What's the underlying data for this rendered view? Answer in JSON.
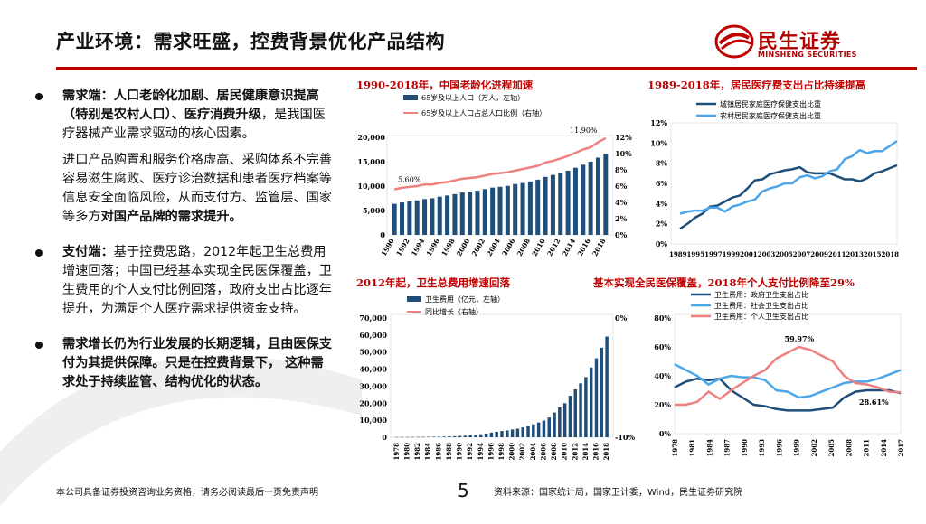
{
  "header": {
    "title": "产业环境：需求旺盛，控费背景优化产品结构",
    "logo_cn": "民生证券",
    "logo_en": "MINSHENG SECURITIES"
  },
  "left": {
    "b1_bold": "需求端：人口老龄化加剧、居民健康意识提高（特别是农村人口）、医疗消费升级",
    "b1_rest": "，是我国医疗器械产业需求驱动的核心因素。",
    "p1_rest": "进口产品购置和服务价格虚高、采购体系不完善容易滋生腐败、医疗诊治数据和患者医疗档案等信息安全面临风险，从而支付方、监管层、国家等多方",
    "p1_bold": "对国产品牌的需求提升。",
    "b2_bold": "支付端：",
    "b2_rest": "基于控费思路，2012年起卫生总费用增速回落；中国已经基本实现全民医保覆盖，卫生费用的个人支付比例回落，政府支出占比逐年提升，为满足个人医疗需求提供资金支持。",
    "b3_bold": "需求增长仍为行业发展的长期逻辑，且由医保支付为其提供保障。只是在控费背景下， 这种需求处于持续监管、结构优化的状态。"
  },
  "footer": {
    "disclaimer": "本公司具备证券投资咨询业务资格，请务必阅读最后一页免责声明",
    "page": "5",
    "source": "资料来源：国家统计局，国家卫计委，Wind，民生证券研究院"
  },
  "colors": {
    "accent": "#c00000",
    "navy": "#1f4e79",
    "pink": "#f08080",
    "sky": "#4da6e8"
  },
  "chart_data": [
    {
      "type": "bar",
      "title": "1990-2018年，中国老龄化进程加速",
      "legend": [
        "65岁及以上人口（万人，左轴）",
        "65岁及以上人口占总人口比例（右轴）"
      ],
      "x": [
        1990,
        1991,
        1992,
        1993,
        1994,
        1995,
        1996,
        1997,
        1998,
        1999,
        2000,
        2001,
        2002,
        2003,
        2004,
        2005,
        2006,
        2007,
        2008,
        2009,
        2010,
        2011,
        2012,
        2013,
        2014,
        2015,
        2016,
        2017,
        2018
      ],
      "x_ticks": [
        "1990",
        "1992",
        "1994",
        "1996",
        "1998",
        "2000",
        "2002",
        "2004",
        "2006",
        "2008",
        "2010",
        "2012",
        "2014",
        "2016",
        "2018"
      ],
      "bars_left": [
        6368,
        6651,
        6843,
        7070,
        7350,
        7510,
        7833,
        8085,
        8359,
        8679,
        8821,
        9062,
        9377,
        9692,
        9857,
        10055,
        10419,
        10636,
        10956,
        11307,
        11894,
        12288,
        12714,
        13161,
        13755,
        14386,
        15003,
        15831,
        16658
      ],
      "line_right": [
        5.6,
        5.8,
        5.9,
        6.0,
        6.2,
        6.2,
        6.4,
        6.5,
        6.7,
        6.9,
        7.0,
        7.1,
        7.3,
        7.5,
        7.6,
        7.7,
        7.9,
        8.1,
        8.3,
        8.5,
        8.9,
        9.1,
        9.4,
        9.7,
        10.1,
        10.5,
        10.8,
        11.4,
        11.9
      ],
      "ylim_left": [
        0,
        20000
      ],
      "yticks_left": [
        "0",
        "5,000",
        "10,000",
        "15,000",
        "20,000"
      ],
      "ylim_right": [
        0,
        12
      ],
      "yticks_right": [
        "0%",
        "2%",
        "4%",
        "6%",
        "8%",
        "10%",
        "12%"
      ],
      "annotations": [
        "5.60%",
        "11.90%"
      ]
    },
    {
      "type": "line",
      "title": "1989-2018年，居民医疗费支出占比持续提高",
      "legend": [
        "城镇居民家庭医疗保健支出比重",
        "农村居民家庭医疗保健支出比重"
      ],
      "x": [
        1989,
        1990,
        1991,
        1992,
        1993,
        1994,
        1995,
        1996,
        1997,
        1998,
        1999,
        2000,
        2001,
        2002,
        2003,
        2004,
        2005,
        2006,
        2007,
        2008,
        2009,
        2010,
        2011,
        2012,
        2013,
        2014,
        2015,
        2016,
        2017,
        2018
      ],
      "x_ticks_text": "1989199519971999200120032005200720092011201320152018",
      "series": [
        {
          "name": "城镇居民家庭医疗保健支出比重",
          "values": [
            1.5,
            2.0,
            2.6,
            3.0,
            3.7,
            3.8,
            4.2,
            4.6,
            4.8,
            5.5,
            6.3,
            6.4,
            6.9,
            7.1,
            7.3,
            7.4,
            7.6,
            7.1,
            7.0,
            7.0,
            7.0,
            6.7,
            6.4,
            6.4,
            6.2,
            6.5,
            7.0,
            7.2,
            7.5,
            7.8
          ]
        },
        {
          "name": "农村居民家庭医疗保健支出比重",
          "values": [
            3.0,
            3.2,
            3.3,
            3.3,
            3.6,
            3.6,
            3.2,
            3.7,
            3.9,
            4.2,
            4.4,
            5.2,
            5.5,
            5.7,
            6.0,
            6.0,
            6.6,
            6.8,
            6.5,
            6.7,
            7.2,
            7.4,
            8.4,
            8.7,
            9.3,
            9.0,
            9.2,
            9.2,
            9.7,
            10.2
          ]
        }
      ],
      "ylim": [
        0,
        12
      ],
      "yticks": [
        "0%",
        "2%",
        "4%",
        "6%",
        "8%",
        "10%",
        "12%"
      ]
    },
    {
      "type": "bar",
      "title": "2012年起，卫生总费用增速回落",
      "legend": [
        "卫生费用（亿元，左轴）",
        "同比增长（右轴）"
      ],
      "x": [
        1978,
        1979,
        1980,
        1981,
        1982,
        1983,
        1984,
        1985,
        1986,
        1987,
        1988,
        1989,
        1990,
        1991,
        1992,
        1993,
        1994,
        1995,
        1996,
        1997,
        1998,
        1999,
        2000,
        2001,
        2002,
        2003,
        2004,
        2005,
        2006,
        2007,
        2008,
        2009,
        2010,
        2011,
        2012,
        2013,
        2014,
        2015,
        2016,
        2017,
        2018
      ],
      "x_ticks": [
        "1978",
        "1980",
        "1982",
        "1984",
        "1986",
        "1988",
        "1990",
        "1992",
        "1994",
        "1996",
        "1998",
        "2000",
        "2002",
        "2004",
        "2006",
        "2008",
        "2010",
        "2012",
        "2014",
        "2016",
        "2018"
      ],
      "bars_left": [
        110,
        126,
        143,
        160,
        177,
        207,
        242,
        279,
        316,
        379,
        488,
        615,
        747,
        893,
        1097,
        1378,
        1761,
        2155,
        2709,
        3197,
        3679,
        4048,
        4587,
        5026,
        5790,
        6584,
        7590,
        8660,
        9843,
        11574,
        14535,
        17542,
        19980,
        24346,
        28119,
        31669,
        35312,
        40975,
        46345,
        52598,
        59122
      ],
      "ylim_left": [
        0,
        70000
      ],
      "yticks_left": [
        "0",
        "10,000",
        "20,000",
        "30,000",
        "40,000",
        "50,000",
        "60,000",
        "70,000"
      ],
      "yticks_right": [
        "-10%",
        "0%"
      ]
    },
    {
      "type": "line",
      "title": "基本实现全民医保覆盖，2018年个人支付比例降至29%",
      "legend": [
        "卫生费用：政府卫生支出占比",
        "卫生费用：社会卫生支出占比",
        "卫生费用：个人卫生支出占比"
      ],
      "x": [
        1978,
        1980,
        1982,
        1984,
        1986,
        1988,
        1990,
        1992,
        1994,
        1996,
        1998,
        2000,
        2002,
        2004,
        2006,
        2008,
        2010,
        2012,
        2014,
        2016,
        2018
      ],
      "x_ticks": [
        "1978",
        "1981",
        "1984",
        "1987",
        "1990",
        "1993",
        "1996",
        "1999",
        "2002",
        "2005",
        "2008",
        "2011",
        "2014",
        "2017"
      ],
      "series": [
        {
          "name": "卫生费用：政府卫生支出占比",
          "values": [
            32,
            36,
            38,
            37,
            38,
            30,
            25,
            20,
            19,
            17,
            16,
            16,
            16,
            17,
            18,
            25,
            29,
            30,
            30,
            30,
            28
          ]
        },
        {
          "name": "卫生费用：社会卫生支出占比",
          "values": [
            48,
            44,
            40,
            34,
            38,
            40,
            39,
            39,
            37,
            30,
            29,
            25,
            26,
            29,
            32,
            35,
            36,
            36,
            38,
            41,
            44
          ]
        },
        {
          "name": "卫生费用：个人卫生支出占比",
          "values": [
            20,
            20,
            22,
            29,
            24,
            30,
            35,
            40,
            44,
            52,
            56,
            59.97,
            58,
            54,
            50,
            40,
            35,
            34,
            32,
            29,
            28.61
          ]
        }
      ],
      "ylim": [
        0,
        80
      ],
      "yticks": [
        "0%",
        "20%",
        "40%",
        "60%",
        "80%"
      ],
      "annotations": [
        "59.97%",
        "28.61%"
      ]
    }
  ]
}
